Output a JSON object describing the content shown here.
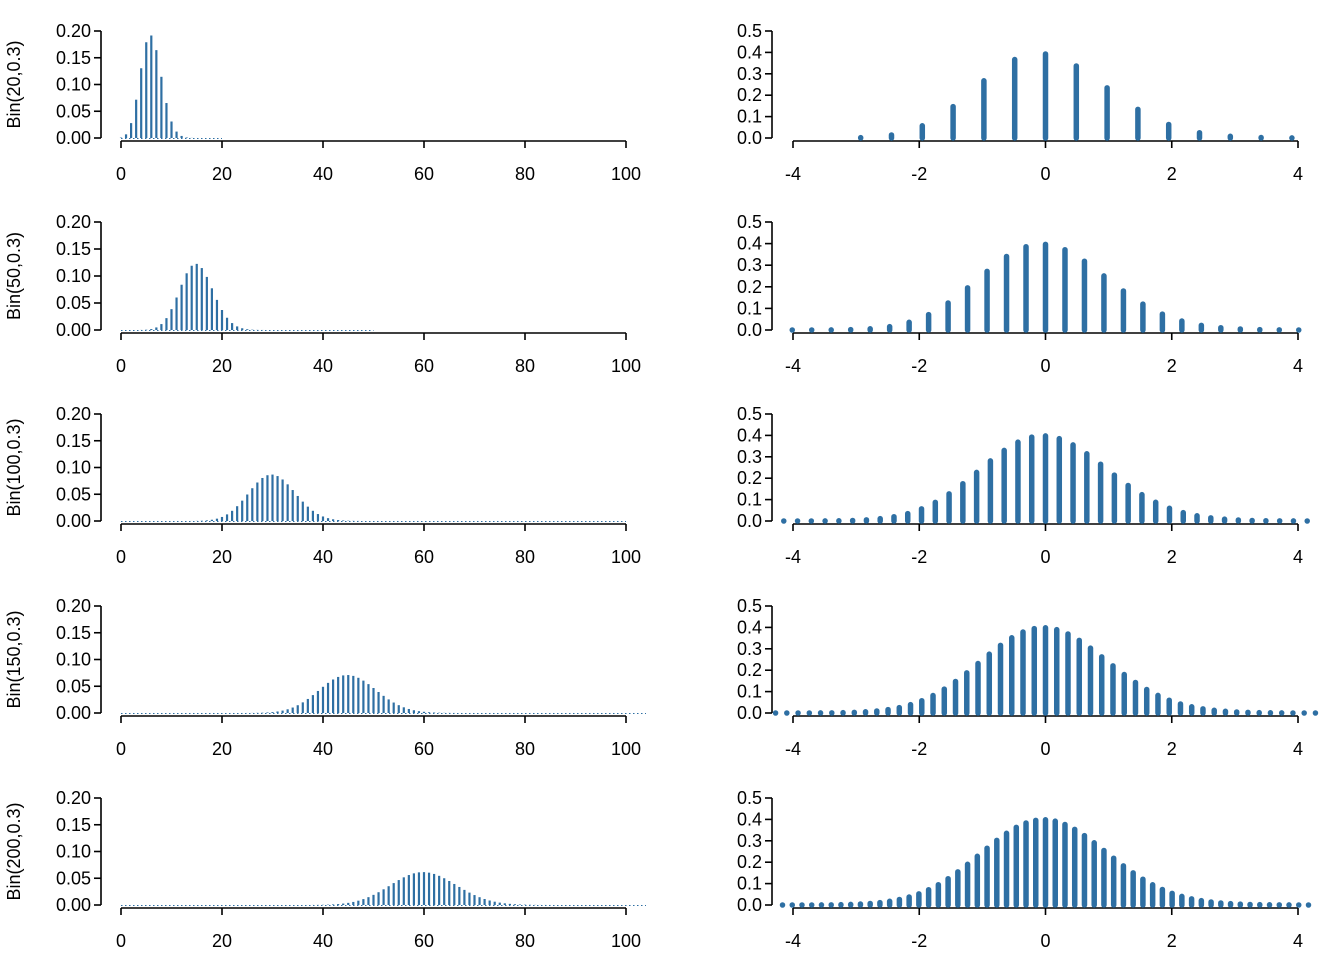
{
  "colors": {
    "bar": "#2e6fa3",
    "axis": "#000000",
    "background": "#ffffff"
  },
  "chart_data": [
    {
      "type": "bar",
      "side": "left",
      "row": 0,
      "n": 20,
      "p": 0.3,
      "ylabel": "Bin(20,0.3)",
      "xlim": [
        0,
        100
      ],
      "ylim": [
        0,
        0.2
      ],
      "xticks": [
        "0",
        "20",
        "40",
        "60",
        "80",
        "100"
      ],
      "yticks": [
        "0.00",
        "0.05",
        "0.10",
        "0.15",
        "0.20"
      ]
    },
    {
      "type": "bar",
      "side": "right",
      "row": 0,
      "n": 20,
      "p": 0.3,
      "ylabel": "",
      "xlim": [
        -4,
        4
      ],
      "ylim": [
        0,
        0.5
      ],
      "xticks": [
        "-4",
        "-2",
        "0",
        "2",
        "4"
      ],
      "yticks": [
        "0.0",
        "0.1",
        "0.2",
        "0.3",
        "0.4",
        "0.5"
      ]
    },
    {
      "type": "bar",
      "side": "left",
      "row": 1,
      "n": 50,
      "p": 0.3,
      "ylabel": "Bin(50,0.3)",
      "xlim": [
        0,
        100
      ],
      "ylim": [
        0,
        0.2
      ],
      "xticks": [
        "0",
        "20",
        "40",
        "60",
        "80",
        "100"
      ],
      "yticks": [
        "0.00",
        "0.05",
        "0.10",
        "0.15",
        "0.20"
      ]
    },
    {
      "type": "bar",
      "side": "right",
      "row": 1,
      "n": 50,
      "p": 0.3,
      "ylabel": "",
      "xlim": [
        -4,
        4
      ],
      "ylim": [
        0,
        0.5
      ],
      "xticks": [
        "-4",
        "-2",
        "0",
        "2",
        "4"
      ],
      "yticks": [
        "0.0",
        "0.1",
        "0.2",
        "0.3",
        "0.4",
        "0.5"
      ]
    },
    {
      "type": "bar",
      "side": "left",
      "row": 2,
      "n": 100,
      "p": 0.3,
      "ylabel": "Bin(100,0.3)",
      "xlim": [
        0,
        100
      ],
      "ylim": [
        0,
        0.2
      ],
      "xticks": [
        "0",
        "20",
        "40",
        "60",
        "80",
        "100"
      ],
      "yticks": [
        "0.00",
        "0.05",
        "0.10",
        "0.15",
        "0.20"
      ]
    },
    {
      "type": "bar",
      "side": "right",
      "row": 2,
      "n": 100,
      "p": 0.3,
      "ylabel": "",
      "xlim": [
        -4,
        4
      ],
      "ylim": [
        0,
        0.5
      ],
      "xticks": [
        "-4",
        "-2",
        "0",
        "2",
        "4"
      ],
      "yticks": [
        "0.0",
        "0.1",
        "0.2",
        "0.3",
        "0.4",
        "0.5"
      ]
    },
    {
      "type": "bar",
      "side": "left",
      "row": 3,
      "n": 150,
      "p": 0.3,
      "ylabel": "Bin(150,0.3)",
      "xlim": [
        0,
        100
      ],
      "ylim": [
        0,
        0.2
      ],
      "xticks": [
        "0",
        "20",
        "40",
        "60",
        "80",
        "100"
      ],
      "yticks": [
        "0.00",
        "0.05",
        "0.10",
        "0.15",
        "0.20"
      ]
    },
    {
      "type": "bar",
      "side": "right",
      "row": 3,
      "n": 150,
      "p": 0.3,
      "ylabel": "",
      "xlim": [
        -4,
        4
      ],
      "ylim": [
        0,
        0.5
      ],
      "xticks": [
        "-4",
        "-2",
        "0",
        "2",
        "4"
      ],
      "yticks": [
        "0.0",
        "0.1",
        "0.2",
        "0.3",
        "0.4",
        "0.5"
      ]
    },
    {
      "type": "bar",
      "side": "left",
      "row": 4,
      "n": 200,
      "p": 0.3,
      "ylabel": "Bin(200,0.3)",
      "xlim": [
        0,
        100
      ],
      "ylim": [
        0,
        0.2
      ],
      "xticks": [
        "0",
        "20",
        "40",
        "60",
        "80",
        "100"
      ],
      "yticks": [
        "0.00",
        "0.05",
        "0.10",
        "0.15",
        "0.20"
      ]
    },
    {
      "type": "bar",
      "side": "right",
      "row": 4,
      "n": 200,
      "p": 0.3,
      "ylabel": "",
      "xlim": [
        -4,
        4
      ],
      "ylim": [
        0,
        0.5
      ],
      "xticks": [
        "-4",
        "-2",
        "0",
        "2",
        "4"
      ],
      "yticks": [
        "0.0",
        "0.1",
        "0.2",
        "0.3",
        "0.4",
        "0.5"
      ]
    }
  ]
}
